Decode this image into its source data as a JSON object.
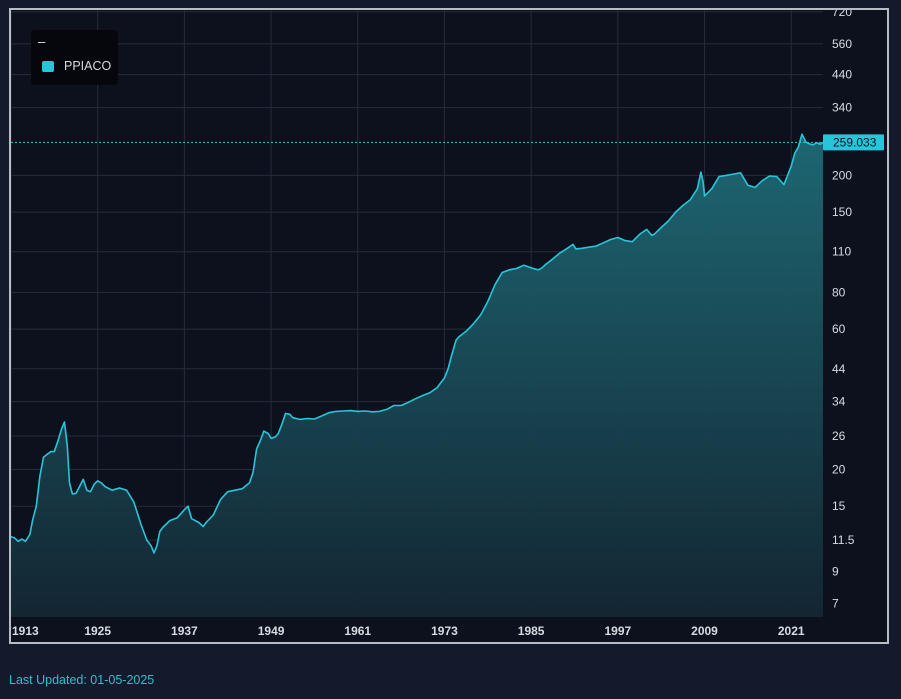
{
  "legend": {
    "title": "–",
    "series_label": "PPIACO"
  },
  "last_updated": "Last Updated: 01-05-2025",
  "colors": {
    "accent": "#26c6da",
    "background": "#0c111d",
    "page": "#131a2b",
    "grid": "#262c3a",
    "text": "#d7dbe2"
  },
  "chart_data": {
    "type": "area",
    "y_scale": "log",
    "grid": true,
    "legend_position": "top-left",
    "ylim": [
      6.3,
      730
    ],
    "xlim": [
      1913.0,
      2025.4
    ],
    "y_ticks": [
      {
        "value": 720,
        "label": "720"
      },
      {
        "value": 560,
        "label": "560"
      },
      {
        "value": 440,
        "label": "440"
      },
      {
        "value": 340,
        "label": "340"
      },
      {
        "value": 200,
        "label": "200"
      },
      {
        "value": 150,
        "label": "150"
      },
      {
        "value": 110,
        "label": "110"
      },
      {
        "value": 80,
        "label": "80"
      },
      {
        "value": 60,
        "label": "60"
      },
      {
        "value": 44,
        "label": "44"
      },
      {
        "value": 34,
        "label": "34"
      },
      {
        "value": 26,
        "label": "26"
      },
      {
        "value": 20,
        "label": "20"
      },
      {
        "value": 15,
        "label": "15"
      },
      {
        "value": 11.5,
        "label": "11.5"
      },
      {
        "value": 9,
        "label": "9"
      },
      {
        "value": 7,
        "label": "7"
      }
    ],
    "x_ticks": [
      {
        "value": 1913,
        "label": "1913"
      },
      {
        "value": 1925,
        "label": "1925"
      },
      {
        "value": 1937,
        "label": "1937"
      },
      {
        "value": 1949,
        "label": "1949"
      },
      {
        "value": 1961,
        "label": "1961"
      },
      {
        "value": 1973,
        "label": "1973"
      },
      {
        "value": 1985,
        "label": "1985"
      },
      {
        "value": 1997,
        "label": "1997"
      },
      {
        "value": 2009,
        "label": "2009"
      },
      {
        "value": 2021,
        "label": "2021"
      }
    ],
    "last_value": 259.033,
    "last_value_label": "259.033",
    "series": [
      {
        "name": "PPIACO",
        "points": [
          [
            1913.0,
            11.8
          ],
          [
            1913.5,
            11.7
          ],
          [
            1914.0,
            11.4
          ],
          [
            1914.5,
            11.6
          ],
          [
            1915.0,
            11.4
          ],
          [
            1915.6,
            12.0
          ],
          [
            1916.0,
            13.5
          ],
          [
            1916.5,
            15.0
          ],
          [
            1917.0,
            19.0
          ],
          [
            1917.5,
            22.0
          ],
          [
            1918.0,
            22.5
          ],
          [
            1918.5,
            23.0
          ],
          [
            1919.0,
            23.0
          ],
          [
            1919.6,
            25.5
          ],
          [
            1920.0,
            27.5
          ],
          [
            1920.4,
            29.0
          ],
          [
            1920.8,
            24.0
          ],
          [
            1921.1,
            18.0
          ],
          [
            1921.5,
            16.5
          ],
          [
            1922.0,
            16.6
          ],
          [
            1922.5,
            17.5
          ],
          [
            1923.0,
            18.5
          ],
          [
            1923.5,
            17.0
          ],
          [
            1924.0,
            16.8
          ],
          [
            1924.5,
            17.8
          ],
          [
            1925.0,
            18.3
          ],
          [
            1925.5,
            18.0
          ],
          [
            1926.0,
            17.5
          ],
          [
            1927.0,
            17.0
          ],
          [
            1928.0,
            17.3
          ],
          [
            1929.0,
            17.0
          ],
          [
            1930.0,
            15.5
          ],
          [
            1931.0,
            13.0
          ],
          [
            1931.8,
            11.5
          ],
          [
            1932.4,
            11.0
          ],
          [
            1932.8,
            10.4
          ],
          [
            1933.2,
            11.0
          ],
          [
            1933.6,
            12.3
          ],
          [
            1934.0,
            12.7
          ],
          [
            1935.0,
            13.4
          ],
          [
            1936.0,
            13.7
          ],
          [
            1937.0,
            14.6
          ],
          [
            1937.5,
            15.0
          ],
          [
            1938.0,
            13.6
          ],
          [
            1939.0,
            13.2
          ],
          [
            1939.6,
            12.8
          ],
          [
            1940.0,
            13.2
          ],
          [
            1941.0,
            14.0
          ],
          [
            1942.0,
            15.8
          ],
          [
            1943.0,
            16.8
          ],
          [
            1944.0,
            17.0
          ],
          [
            1945.0,
            17.2
          ],
          [
            1946.0,
            18.0
          ],
          [
            1946.5,
            19.5
          ],
          [
            1947.0,
            23.5
          ],
          [
            1947.5,
            25.0
          ],
          [
            1948.0,
            27.0
          ],
          [
            1948.6,
            26.5
          ],
          [
            1949.0,
            25.5
          ],
          [
            1949.6,
            25.8
          ],
          [
            1950.0,
            26.5
          ],
          [
            1950.5,
            28.5
          ],
          [
            1951.0,
            31.0
          ],
          [
            1951.6,
            30.8
          ],
          [
            1952.0,
            30.0
          ],
          [
            1953.0,
            29.6
          ],
          [
            1954.0,
            29.8
          ],
          [
            1955.0,
            29.7
          ],
          [
            1956.0,
            30.4
          ],
          [
            1957.0,
            31.2
          ],
          [
            1958.0,
            31.5
          ],
          [
            1959.0,
            31.6
          ],
          [
            1960.0,
            31.7
          ],
          [
            1961.0,
            31.5
          ],
          [
            1962.0,
            31.6
          ],
          [
            1963.0,
            31.4
          ],
          [
            1964.0,
            31.5
          ],
          [
            1965.0,
            32.0
          ],
          [
            1966.0,
            33.0
          ],
          [
            1967.0,
            33.0
          ],
          [
            1968.0,
            33.8
          ],
          [
            1969.0,
            34.8
          ],
          [
            1970.0,
            35.7
          ],
          [
            1971.0,
            36.5
          ],
          [
            1972.0,
            38.0
          ],
          [
            1973.0,
            41.0
          ],
          [
            1973.5,
            44.0
          ],
          [
            1974.0,
            49.0
          ],
          [
            1974.6,
            55.0
          ],
          [
            1975.0,
            56.5
          ],
          [
            1976.0,
            59.0
          ],
          [
            1977.0,
            62.5
          ],
          [
            1978.0,
            67.0
          ],
          [
            1979.0,
            74.5
          ],
          [
            1980.0,
            85.0
          ],
          [
            1981.0,
            93.5
          ],
          [
            1982.0,
            95.5
          ],
          [
            1983.0,
            96.5
          ],
          [
            1984.0,
            99.0
          ],
          [
            1985.0,
            97.0
          ],
          [
            1985.6,
            96.0
          ],
          [
            1986.0,
            95.5
          ],
          [
            1986.5,
            97.0
          ],
          [
            1987.0,
            99.5
          ],
          [
            1988.0,
            104.0
          ],
          [
            1989.0,
            109.0
          ],
          [
            1990.0,
            113.0
          ],
          [
            1990.8,
            116.5
          ],
          [
            1991.2,
            112.5
          ],
          [
            1992.0,
            113.0
          ],
          [
            1993.0,
            114.0
          ],
          [
            1994.0,
            115.0
          ],
          [
            1995.0,
            118.0
          ],
          [
            1996.0,
            121.0
          ],
          [
            1997.0,
            123.0
          ],
          [
            1998.0,
            120.0
          ],
          [
            1999.0,
            119.0
          ],
          [
            2000.0,
            126.0
          ],
          [
            2001.0,
            131.0
          ],
          [
            2001.7,
            125.0
          ],
          [
            2002.0,
            126.0
          ],
          [
            2003.0,
            133.0
          ],
          [
            2004.0,
            140.0
          ],
          [
            2005.0,
            150.0
          ],
          [
            2006.0,
            158.0
          ],
          [
            2007.0,
            165.0
          ],
          [
            2008.0,
            180.0
          ],
          [
            2008.5,
            205.0
          ],
          [
            2008.8,
            190.0
          ],
          [
            2009.0,
            170.0
          ],
          [
            2010.0,
            180.0
          ],
          [
            2011.0,
            198.0
          ],
          [
            2012.0,
            200.0
          ],
          [
            2013.0,
            202.0
          ],
          [
            2014.0,
            204.0
          ],
          [
            2015.0,
            185.0
          ],
          [
            2016.0,
            182.0
          ],
          [
            2017.0,
            192.0
          ],
          [
            2018.0,
            199.0
          ],
          [
            2019.0,
            198.0
          ],
          [
            2020.0,
            186.0
          ],
          [
            2021.0,
            215.0
          ],
          [
            2021.5,
            238.0
          ],
          [
            2022.0,
            250.0
          ],
          [
            2022.5,
            276.0
          ],
          [
            2023.0,
            260.0
          ],
          [
            2023.5,
            256.0
          ],
          [
            2024.0,
            254.0
          ],
          [
            2024.5,
            258.0
          ],
          [
            2025.0,
            255.0
          ],
          [
            2025.4,
            259.033
          ]
        ]
      }
    ]
  }
}
